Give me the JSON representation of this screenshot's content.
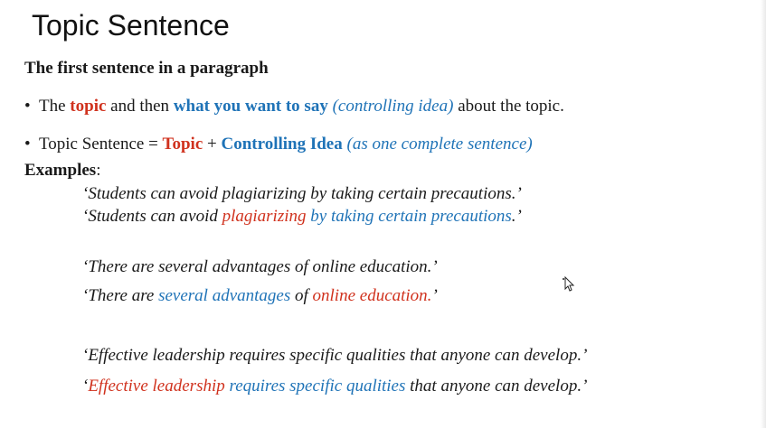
{
  "slide": {
    "title": "Topic Sentence",
    "subtitle": "The first sentence in a paragraph",
    "bullet_symbol": "•",
    "bullet1": {
      "part1": "The ",
      "topic": "topic",
      "part2": " and then ",
      "what": "what you want to say",
      "part3": " ",
      "controlling": "(controlling idea)",
      "part4": " about the topic."
    },
    "bullet2": {
      "part1": "Topic Sentence = ",
      "topic": "Topic",
      "plus": " + ",
      "controlling": "Controlling Idea",
      "space": " ",
      "note": "(as one complete sentence)"
    },
    "examples_label": "Examples",
    "examples_colon": ":",
    "examples": {
      "ex1_plain": "‘Students can avoid plagiarizing by taking certain precautions.’",
      "ex1_colored": {
        "open": "‘Students can avoid ",
        "topic": "plagiarizing",
        "space": " ",
        "controlling": "by taking certain precautions",
        "close": ".’"
      },
      "ex2_plain": "‘There are several advantages of online education.’",
      "ex2_colored": {
        "open": "‘There are ",
        "controlling": "several advantages",
        "mid": " of ",
        "topic": "online education.",
        "close": "’"
      },
      "ex3_plain": "‘Effective leadership requires specific qualities that anyone can develop.’",
      "ex3_colored": {
        "open": "‘",
        "topic": "Effective leadership",
        "space": " ",
        "controlling": "requires specific qualities",
        "close": " that anyone can develop.’"
      }
    }
  },
  "colors": {
    "topic": "#d0321e",
    "controlling": "#1f73b7",
    "text": "#1a1a1a"
  },
  "icons": {
    "cursor": "move-cursor-icon"
  }
}
